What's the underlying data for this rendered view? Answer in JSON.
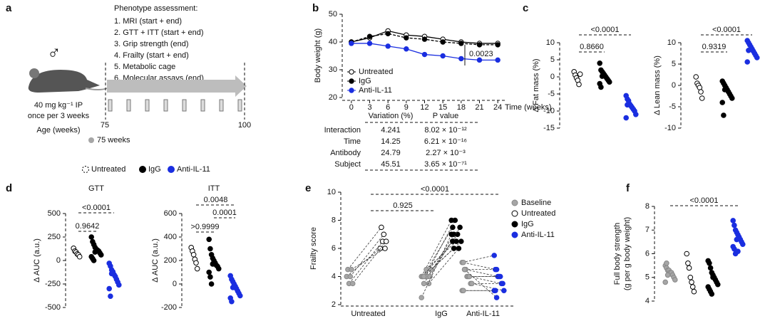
{
  "panel_labels": [
    "a",
    "b",
    "c",
    "d",
    "e",
    "f"
  ],
  "panel_a": {
    "title": "Phenotype assessment:",
    "items": [
      "1. MRI (start + end)",
      "2. GTT + ITT (start + end)",
      "3. Grip strength (end)",
      "4. Frailty (start + end)",
      "5. Metabolic cage",
      "6. Molecular assays (end)"
    ],
    "sex": "♂",
    "dose": [
      "40 mg kg⁻¹ IP",
      "once per 3 weeks"
    ],
    "age_label": "Age (weeks)",
    "age_start": 75,
    "age_end": 100,
    "marker": "75 weeks"
  },
  "table": {
    "header": [
      "Variation (%)",
      "P value"
    ],
    "rows": [
      [
        "Interaction",
        4.241,
        "8.02 × 10⁻¹²"
      ],
      [
        "Time",
        14.25,
        "6.21 × 10⁻¹⁶"
      ],
      [
        "Antibody",
        24.79,
        "2.27 × 10⁻³"
      ],
      [
        "Subject",
        45.51,
        "3.65 × 10⁻⁷¹"
      ]
    ]
  },
  "legend": [
    {
      "name": "Untreated",
      "color": "#ffffff"
    },
    {
      "name": "IgG",
      "color": "#000000"
    },
    {
      "name": "Anti-IL-11",
      "color": "#1a2ee0"
    }
  ],
  "chart_data": [
    {
      "type": "line",
      "xlabel": "Time (weeks)",
      "ylabel": "Body weight (g)",
      "x": [
        0,
        3,
        6,
        9,
        12,
        15,
        18,
        21,
        24
      ],
      "xlim": [
        -1.5,
        25.5
      ],
      "xticks": [
        0,
        3,
        6,
        9,
        12,
        15,
        18,
        21,
        24
      ],
      "ylim": [
        20,
        50
      ],
      "yticks": [
        20,
        30,
        40,
        50
      ],
      "series": [
        {
          "name": "Untreated",
          "color": "#ffffff",
          "values": [
            40,
            41.5,
            44,
            42.5,
            42,
            41,
            40,
            39.5,
            39.5
          ]
        },
        {
          "name": "IgG",
          "color": "#000000",
          "values": [
            40,
            42,
            43,
            41.5,
            41,
            40,
            39.5,
            39,
            39
          ]
        },
        {
          "name": "Anti-IL-11",
          "color": "#1a2ee0",
          "values": [
            39.5,
            39.5,
            38.5,
            37.5,
            35.5,
            35,
            34,
            33.5,
            33.5
          ]
        }
      ],
      "annotations": [
        "0.0023"
      ]
    },
    {
      "type": "strip",
      "ylabel": "Δ Fat mass (%)",
      "ylim": [
        -15,
        10
      ],
      "yticks": [
        -15,
        -10,
        -5,
        0,
        5,
        10
      ],
      "groups": [
        {
          "color": "#ffffff",
          "values": [
            1.5,
            0.5,
            -0.3,
            -1,
            -2.2,
            0.8
          ]
        },
        {
          "color": "#000000",
          "values": [
            4,
            2,
            1.5,
            1,
            0.5,
            0,
            -0.5,
            -1,
            -1.5,
            -2,
            -3,
            0.2
          ]
        },
        {
          "color": "#1a2ee0",
          "values": [
            -5.5,
            -6.5,
            -7,
            -8,
            -8.5,
            -9,
            -9.5,
            -10,
            -11,
            -12,
            -8.2
          ]
        }
      ],
      "annotations": [
        "<0.0001",
        "0.8660"
      ]
    },
    {
      "type": "strip",
      "ylabel": "Δ Lean mass (%)",
      "ylim": [
        -10,
        10
      ],
      "yticks": [
        -10,
        -5,
        0,
        5,
        10
      ],
      "groups": [
        {
          "color": "#ffffff",
          "values": [
            2,
            0.5,
            0,
            -0.5,
            -1.5,
            -3
          ]
        },
        {
          "color": "#000000",
          "values": [
            1,
            0.5,
            0,
            -0.5,
            -1,
            -1.5,
            -2,
            -2.5,
            -3,
            -4,
            -7,
            -1
          ]
        },
        {
          "color": "#1a2ee0",
          "values": [
            10.5,
            10,
            9.5,
            9,
            8.5,
            8,
            7.5,
            7,
            6.5,
            5.5,
            8.2
          ]
        }
      ],
      "annotations": [
        "<0.0001",
        "0.9319"
      ]
    },
    {
      "type": "strip",
      "title": "GTT",
      "ylabel": "Δ AUC (a.u.)",
      "ylim": [
        -500,
        500
      ],
      "yticks": [
        -500,
        -250,
        0,
        250,
        500
      ],
      "groups": [
        {
          "color": "#ffffff",
          "values": [
            130,
            100,
            90,
            70,
            60,
            40
          ]
        },
        {
          "color": "#000000",
          "values": [
            250,
            200,
            170,
            140,
            120,
            110,
            100,
            80,
            60,
            40,
            20,
            0,
            90
          ]
        },
        {
          "color": "#1a2ee0",
          "values": [
            -30,
            -60,
            -100,
            -120,
            -150,
            -170,
            -200,
            -230,
            -260,
            -300,
            -380,
            -140
          ]
        }
      ],
      "annotations": [
        "<0.0001",
        "0.9642"
      ]
    },
    {
      "type": "strip",
      "title": "ITT",
      "ylabel": "Δ AUC (a.u.)",
      "ylim": [
        -200,
        600
      ],
      "yticks": [
        -200,
        0,
        200,
        400,
        600
      ],
      "groups": [
        {
          "color": "#ffffff",
          "values": [
            310,
            280,
            250,
            210,
            180,
            130
          ]
        },
        {
          "color": "#000000",
          "values": [
            380,
            300,
            250,
            220,
            200,
            180,
            160,
            150,
            130,
            100,
            60,
            0,
            170
          ]
        },
        {
          "color": "#1a2ee0",
          "values": [
            70,
            40,
            20,
            0,
            -20,
            -40,
            -60,
            -80,
            -100,
            -120,
            -150,
            -30
          ]
        }
      ],
      "annotations": [
        "0.0048",
        "0.0001",
        ">0.9999"
      ]
    },
    {
      "type": "paired",
      "ylabel": "Frailty score",
      "ylim": [
        2,
        10
      ],
      "yticks": [
        2,
        4,
        6,
        8,
        10
      ],
      "categories": [
        "Untreated",
        "IgG",
        "Anti-IL-11"
      ],
      "legend": [
        {
          "name": "Baseline",
          "color": "#a6a6a6"
        },
        {
          "name": "Untreated",
          "color": "#ffffff"
        },
        {
          "name": "IgG",
          "color": "#000000"
        },
        {
          "name": "Anti-IL-11",
          "color": "#1a2ee0"
        }
      ],
      "groups": [
        {
          "baseline": [
            4,
            4.5,
            3.5,
            4,
            4.5,
            3.5
          ],
          "end": [
            6,
            7.5,
            6.5,
            7,
            6,
            6.5
          ]
        },
        {
          "baseline": [
            4,
            4,
            3.5,
            4,
            4.5,
            4,
            3.5,
            4,
            4.5,
            2.5,
            4,
            4
          ],
          "end": [
            8,
            7.5,
            7,
            8,
            6.5,
            7,
            6,
            7.5,
            6.5,
            7,
            6.5,
            6
          ]
        },
        {
          "baseline": [
            5,
            5,
            4.5,
            4.5,
            4,
            4,
            4,
            3.5,
            3.5,
            3,
            3,
            4.5
          ],
          "end": [
            5.5,
            4.5,
            4.5,
            4,
            4,
            4,
            3.5,
            3.5,
            3,
            3,
            3,
            2.5
          ]
        }
      ],
      "annotations": [
        "<0.0001",
        "0.925"
      ]
    },
    {
      "type": "strip",
      "ylabel": [
        "Full body strength",
        "(g per g body weight)"
      ],
      "ylim": [
        4,
        8
      ],
      "yticks": [
        4,
        5,
        6,
        7,
        8
      ],
      "groups": [
        {
          "color": "#a6a6a6",
          "values": [
            5.5,
            5.4,
            5.3,
            5.3,
            5.2,
            5.2,
            5.1,
            5.0,
            4.9,
            4.8,
            5.6,
            5.1
          ]
        },
        {
          "color": "#ffffff",
          "values": [
            6.0,
            5.6,
            5.4,
            5.0,
            4.8,
            4.6,
            4.4
          ]
        },
        {
          "color": "#000000",
          "values": [
            5.7,
            5.6,
            5.4,
            5.2,
            5.1,
            5.0,
            4.9,
            4.8,
            4.7,
            4.6,
            4.5,
            4.4,
            4.3,
            5.0
          ]
        },
        {
          "color": "#1a2ee0",
          "values": [
            7.4,
            7.2,
            7.0,
            6.9,
            6.8,
            6.7,
            6.6,
            6.5,
            6.4,
            6.3,
            6.2,
            6.0,
            6.6,
            6.1
          ]
        }
      ],
      "annotations": [
        "<0.0001"
      ]
    }
  ]
}
